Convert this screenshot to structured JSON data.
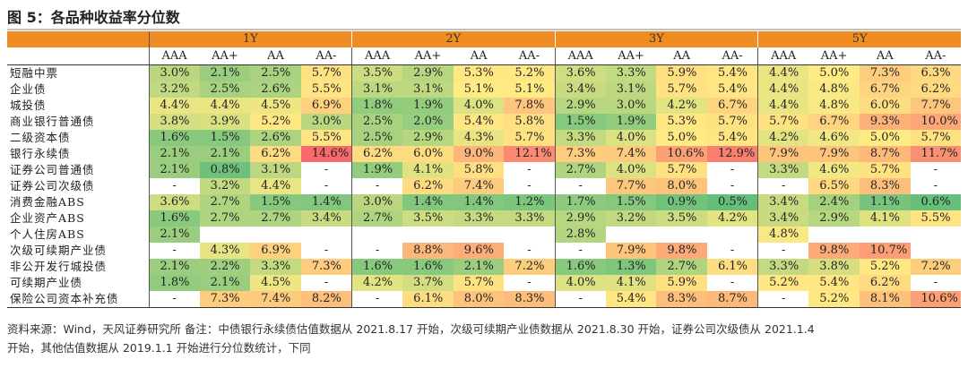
{
  "title": "图 5：各品种收益率分位数",
  "chart_data": {
    "type": "table",
    "tenors": [
      "1Y",
      "2Y",
      "3Y",
      "5Y"
    ],
    "ratings": [
      "AAA",
      "AA+",
      "AA",
      "AA-"
    ],
    "rows": [
      {
        "label": "短融中票",
        "values": [
          "3.0%",
          "2.1%",
          "2.5%",
          "5.7%",
          "3.5%",
          "2.9%",
          "5.3%",
          "5.2%",
          "3.6%",
          "3.3%",
          "5.9%",
          "5.4%",
          "4.4%",
          "5.0%",
          "7.3%",
          "6.3%"
        ]
      },
      {
        "label": "企业债",
        "values": [
          "3.2%",
          "2.5%",
          "2.6%",
          "5.5%",
          "3.1%",
          "3.1%",
          "5.1%",
          "5.1%",
          "3.4%",
          "3.1%",
          "5.7%",
          "5.4%",
          "4.4%",
          "4.8%",
          "6.7%",
          "6.2%"
        ]
      },
      {
        "label": "城投债",
        "values": [
          "4.4%",
          "4.4%",
          "4.5%",
          "6.9%",
          "1.8%",
          "1.9%",
          "4.0%",
          "7.8%",
          "2.9%",
          "3.0%",
          "4.2%",
          "6.7%",
          "4.4%",
          "4.8%",
          "6.0%",
          "7.7%"
        ]
      },
      {
        "label": "商业银行普通债",
        "values": [
          "3.8%",
          "3.9%",
          "5.2%",
          "3.0%",
          "2.5%",
          "2.0%",
          "5.4%",
          "5.8%",
          "1.5%",
          "1.9%",
          "5.3%",
          "5.7%",
          "5.7%",
          "6.7%",
          "9.3%",
          "10.0%"
        ]
      },
      {
        "label": "二级资本债",
        "values": [
          "1.6%",
          "1.5%",
          "2.6%",
          "5.5%",
          "2.5%",
          "2.9%",
          "4.3%",
          "5.7%",
          "3.3%",
          "4.0%",
          "5.0%",
          "5.4%",
          "4.2%",
          "4.6%",
          "5.0%",
          "5.7%"
        ]
      },
      {
        "label": "银行永续债",
        "values": [
          "2.1%",
          "2.1%",
          "6.2%",
          "14.6%",
          "6.2%",
          "6.0%",
          "9.0%",
          "12.1%",
          "7.3%",
          "7.4%",
          "10.6%",
          "12.9%",
          "7.9%",
          "7.9%",
          "8.7%",
          "11.7%"
        ]
      },
      {
        "label": "证券公司普通债",
        "values": [
          "2.1%",
          "0.8%",
          "3.1%",
          "-",
          "1.9%",
          "4.1%",
          "5.8%",
          "-",
          "2.7%",
          "4.0%",
          "5.7%",
          "-",
          "3.3%",
          "4.6%",
          "5.7%",
          "-"
        ]
      },
      {
        "label": "证券公司次级债",
        "values": [
          "-",
          "3.2%",
          "4.4%",
          "-",
          "-",
          "6.2%",
          "7.4%",
          "-",
          "-",
          "7.7%",
          "8.0%",
          "-",
          "-",
          "6.5%",
          "8.3%",
          "-"
        ]
      },
      {
        "label": "消费金融ABS",
        "values": [
          "3.6%",
          "2.7%",
          "1.5%",
          "1.4%",
          "3.0%",
          "1.4%",
          "1.4%",
          "1.2%",
          "1.7%",
          "1.5%",
          "0.9%",
          "0.5%",
          "3.4%",
          "2.4%",
          "1.1%",
          "0.6%"
        ]
      },
      {
        "label": "企业资产ABS",
        "values": [
          "1.6%",
          "2.7%",
          "2.7%",
          "3.4%",
          "2.7%",
          "3.5%",
          "3.3%",
          "3.3%",
          "2.9%",
          "3.2%",
          "3.5%",
          "4.2%",
          "3.4%",
          "2.9%",
          "4.1%",
          "5.5%"
        ]
      },
      {
        "label": "个人住房ABS",
        "values": [
          "2.1%",
          "",
          "",
          "",
          "",
          "",
          "",
          "",
          "2.8%",
          "",
          "",
          "",
          "4.8%",
          "",
          "",
          ""
        ]
      },
      {
        "label": "次级可续期产业债",
        "values": [
          "-",
          "4.3%",
          "6.9%",
          "-",
          "-",
          "8.8%",
          "9.6%",
          "-",
          "-",
          "7.9%",
          "9.8%",
          "-",
          "-",
          "9.8%",
          "10.7%",
          ""
        ]
      },
      {
        "label": "非公开发行城投债",
        "values": [
          "2.1%",
          "2.2%",
          "3.3%",
          "7.3%",
          "1.6%",
          "1.6%",
          "2.1%",
          "7.2%",
          "1.6%",
          "1.3%",
          "2.7%",
          "6.1%",
          "3.3%",
          "3.8%",
          "5.2%",
          "7.2%"
        ]
      },
      {
        "label": "可续期产业债",
        "values": [
          "1.8%",
          "2.1%",
          "4.5%",
          "-",
          "4.2%",
          "3.7%",
          "5.7%",
          "-",
          "4.0%",
          "4.1%",
          "5.9%",
          "-",
          "5.2%",
          "5.4%",
          "6.2%",
          "-"
        ]
      },
      {
        "label": "保险公司资本补充债",
        "values": [
          "-",
          "7.3%",
          "7.4%",
          "8.2%",
          "-",
          "6.1%",
          "8.0%",
          "8.3%",
          "-",
          "5.4%",
          "8.3%",
          "8.7%",
          "-",
          "5.2%",
          "8.1%",
          "10.6%"
        ]
      }
    ]
  },
  "footnote": {
    "line1": "资料来源：Wind，天风证券研究所  备注：中债银行永续债估值数据从 2021.8.17 开始，次级可续期产业债数据从 2021.8.30 开始，证券公司次级债从 2021.1.4",
    "line2": "开始，其他估值数据从 2019.1.1 开始进行分位数统计，下同"
  }
}
